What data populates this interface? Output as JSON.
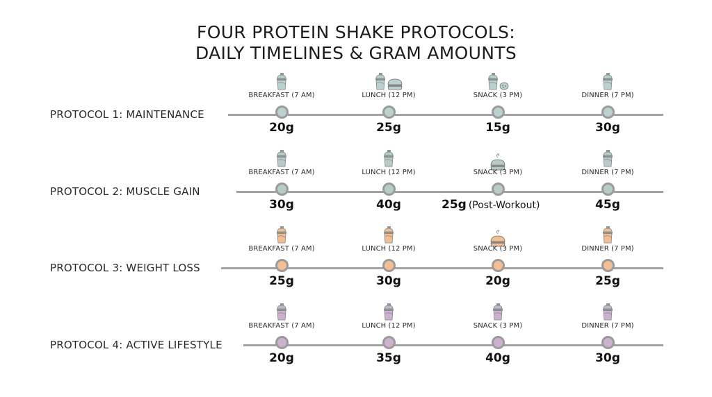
{
  "title": {
    "line1": "FOUR PROTEIN SHAKE PROTOCOLS:",
    "line2": "DAILY TIMELINES & GRAM AMOUNTS"
  },
  "colors": {
    "line": "#a3a3a3",
    "node_border": "#9b9b9b",
    "maintenance": "#b9d2d0",
    "muscle_gain": "#b7cbc8",
    "weight_loss": "#f5be92",
    "active_lifestyle": "#cdb2cf"
  },
  "protocols": [
    {
      "label": "PROTOCOL 1: MAINTENANCE",
      "color": "#b9d2d0",
      "meals": [
        {
          "label": "BREAKFAST (7 AM)",
          "amount": "20g",
          "note": "",
          "icon": "shaker-icon"
        },
        {
          "label": "LUNCH (12 PM)",
          "amount": "25g",
          "note": "",
          "icon": "shaker-burger-icon"
        },
        {
          "label": "SNACK (3 PM)",
          "amount": "15g",
          "note": "",
          "icon": "shaker-cookie-icon"
        },
        {
          "label": "DINNER (7 PM)",
          "amount": "30g",
          "note": "",
          "icon": "shaker-icon"
        }
      ]
    },
    {
      "label": "PROTOCOL 2: MUSCLE GAIN",
      "color": "#b7cbc8",
      "meals": [
        {
          "label": "BREAKFAST (7 AM)",
          "amount": "30g",
          "note": "",
          "icon": "shaker-icon"
        },
        {
          "label": "LUNCH (12 PM)",
          "amount": "40g",
          "note": "",
          "icon": "shaker-icon"
        },
        {
          "label": "SNACK (3 PM)",
          "amount": "25g",
          "note": "(Post-Workout)",
          "icon": "burger-icon"
        },
        {
          "label": "DINNER (7 PM)",
          "amount": "45g",
          "note": "",
          "icon": "shaker-icon"
        }
      ]
    },
    {
      "label": "PROTOCOL 3: WEIGHT LOSS",
      "color": "#f5be92",
      "meals": [
        {
          "label": "BREAKFAST (7 AM)",
          "amount": "25g",
          "note": "",
          "icon": "shaker-icon"
        },
        {
          "label": "LUNCH (12 PM)",
          "amount": "30g",
          "note": "",
          "icon": "shaker-icon"
        },
        {
          "label": "SNACK (3 PM)",
          "amount": "20g",
          "note": "",
          "icon": "burger-icon"
        },
        {
          "label": "DINNER (7 PM)",
          "amount": "25g",
          "note": "",
          "icon": "shaker-icon"
        }
      ]
    },
    {
      "label": "PROTOCOL 4: ACTIVE LIFESTYLE",
      "color": "#cdb2cf",
      "meals": [
        {
          "label": "BREAKFAST (7 AM)",
          "amount": "20g",
          "note": "",
          "icon": "shaker-icon"
        },
        {
          "label": "LUNCH (12 PM)",
          "amount": "35g",
          "note": "",
          "icon": "shaker-icon"
        },
        {
          "label": "SNACK (3 PM)",
          "amount": "40g",
          "note": "",
          "icon": "shaker-icon"
        },
        {
          "label": "DINNER (7 PM)",
          "amount": "30g",
          "note": "",
          "icon": "shaker-icon"
        }
      ]
    }
  ]
}
